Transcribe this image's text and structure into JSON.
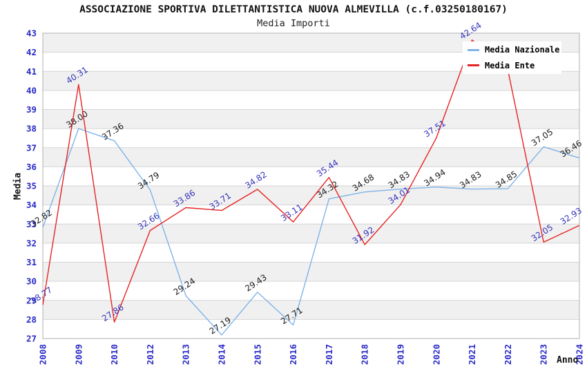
{
  "header": {
    "title": "ASSOCIAZIONE SPORTIVA DILETTANTISTICA NUOVA ALMEVILLA (c.f.03250180167)",
    "subtitle": "Media Importi"
  },
  "colors": {
    "nazionale_line": "#7eb3e8",
    "ente_line": "#e62222",
    "nazionale_label_text": "#1a1a1a",
    "ente_label_text": "#3333bb",
    "tick_label_text": "#2a2ac8",
    "grid_line": "#d5d5d5",
    "band_fill": "#f0f0f0",
    "plot_border": "#b0b0b0"
  },
  "chart_data": {
    "type": "line",
    "title": "ASSOCIAZIONE SPORTIVA DILETTANTISTICA NUOVA ALMEVILLA (c.f.03250180167)",
    "subtitle": "Media Importi",
    "xlabel": "Anno",
    "ylabel": "Media",
    "ylim": [
      27,
      43
    ],
    "y_tick_step": 1,
    "grid": true,
    "alternating_bands": true,
    "legend_position": "top-right",
    "categories": [
      "2008",
      "2009",
      "2010",
      "2012",
      "2013",
      "2014",
      "2015",
      "2016",
      "2017",
      "2018",
      "2019",
      "2020",
      "2021",
      "2022",
      "2023",
      "2024"
    ],
    "series": [
      {
        "name": "Media Nazionale",
        "color": "#7eb3e8",
        "label_color": "#1a1a1a",
        "values": [
          32.82,
          38.0,
          37.36,
          34.79,
          29.24,
          27.19,
          29.43,
          27.71,
          34.32,
          34.68,
          34.83,
          34.94,
          34.83,
          34.85,
          37.05,
          36.46
        ]
      },
      {
        "name": "Media Ente",
        "color": "#e62222",
        "label_color": "#3333bb",
        "values": [
          28.77,
          40.31,
          27.86,
          32.66,
          33.86,
          33.71,
          34.82,
          33.11,
          35.44,
          31.92,
          34.01,
          37.51,
          42.64,
          41.07,
          32.05,
          32.93
        ],
        "label_hidden_for": "2022"
      }
    ]
  }
}
